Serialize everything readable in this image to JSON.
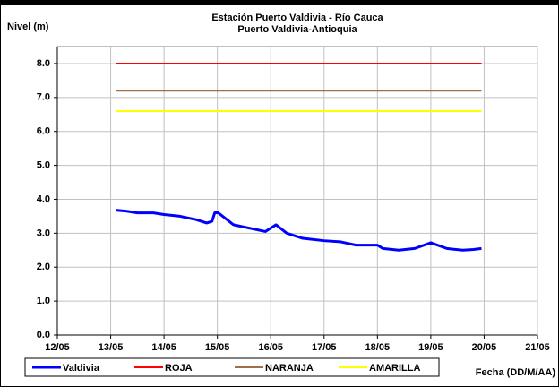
{
  "chart_data": {
    "type": "line",
    "title": "Estación Puerto Valdivia - Río Cauca",
    "subtitle": "Puerto Valdivia-Antioquia",
    "y_label": "Nivel (m)",
    "x_label": "Fecha (DD/M/AA)",
    "xlim": [
      12,
      21
    ],
    "xticks": [
      {
        "value": 12,
        "label": "12/05"
      },
      {
        "value": 13,
        "label": "13/05"
      },
      {
        "value": 14,
        "label": "14/05"
      },
      {
        "value": 15,
        "label": "15/05"
      },
      {
        "value": 16,
        "label": "16/05"
      },
      {
        "value": 17,
        "label": "17/05"
      },
      {
        "value": 18,
        "label": "18/05"
      },
      {
        "value": 19,
        "label": "19/05"
      },
      {
        "value": 20,
        "label": "20/05"
      },
      {
        "value": 21,
        "label": "21/05"
      }
    ],
    "ylim": [
      0,
      8.5
    ],
    "yticks": [
      {
        "value": 0,
        "label": "0.0"
      },
      {
        "value": 1,
        "label": "1.0"
      },
      {
        "value": 2,
        "label": "2.0"
      },
      {
        "value": 3,
        "label": "3.0"
      },
      {
        "value": 4,
        "label": "4.0"
      },
      {
        "value": 5,
        "label": "5.0"
      },
      {
        "value": 6,
        "label": "6.0"
      },
      {
        "value": 7,
        "label": "7.0"
      },
      {
        "value": 8,
        "label": "8.0"
      }
    ],
    "grid": true,
    "legend": "bottom",
    "series": [
      {
        "name": "Valdivia",
        "color": "#0000ff",
        "width": 3,
        "x": [
          13.1,
          13.3,
          13.5,
          13.8,
          14.0,
          14.3,
          14.6,
          14.8,
          14.9,
          14.95,
          15.0,
          15.1,
          15.3,
          15.6,
          15.9,
          16.0,
          16.1,
          16.3,
          16.6,
          17.0,
          17.3,
          17.6,
          18.0,
          18.1,
          18.4,
          18.7,
          19.0,
          19.3,
          19.6,
          19.8,
          19.95
        ],
        "values": [
          3.68,
          3.65,
          3.6,
          3.6,
          3.55,
          3.5,
          3.4,
          3.3,
          3.35,
          3.6,
          3.62,
          3.5,
          3.25,
          3.15,
          3.05,
          3.15,
          3.25,
          3.0,
          2.85,
          2.78,
          2.75,
          2.65,
          2.65,
          2.55,
          2.5,
          2.55,
          2.72,
          2.55,
          2.5,
          2.52,
          2.55
        ]
      },
      {
        "name": "ROJA",
        "color": "#ff0000",
        "width": 2,
        "x": [
          13.1,
          19.95
        ],
        "values": [
          8.0,
          8.0
        ]
      },
      {
        "name": "NARANJA",
        "color": "#a0704a",
        "width": 2,
        "x": [
          13.1,
          19.95
        ],
        "values": [
          7.2,
          7.2
        ]
      },
      {
        "name": "AMARILLA",
        "color": "#ffff00",
        "width": 2,
        "x": [
          13.1,
          19.95
        ],
        "values": [
          6.6,
          6.6
        ]
      }
    ]
  }
}
